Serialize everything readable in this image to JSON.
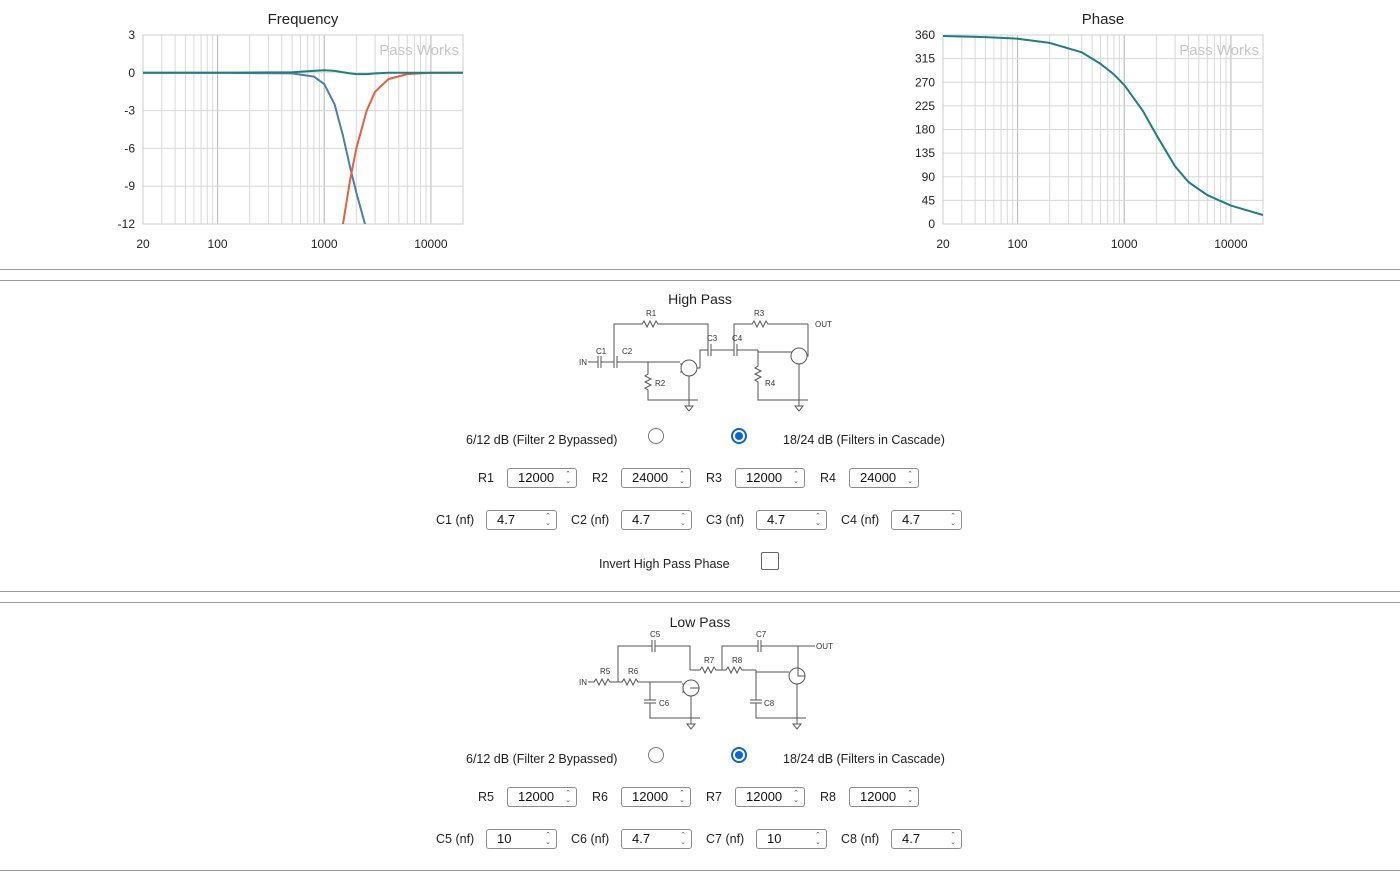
{
  "charts": [
    {
      "title": "Frequency",
      "watermark": "Pass Works",
      "xlabels": [
        "20",
        "100",
        "1000",
        "10000"
      ],
      "ylabels": [
        "3",
        "0",
        "-3",
        "-6",
        "-9",
        "-12"
      ],
      "yticks": [
        3,
        0,
        -3,
        -6,
        -9,
        -12
      ]
    },
    {
      "title": "Phase",
      "watermark": "Pass Works",
      "xlabels": [
        "20",
        "100",
        "1000",
        "10000"
      ],
      "ylabels": [
        "360",
        "315",
        "270",
        "225",
        "180",
        "135",
        "90",
        "45",
        "0"
      ],
      "yticks": [
        360,
        315,
        270,
        225,
        180,
        135,
        90,
        45,
        0
      ]
    }
  ],
  "chart_data": [
    {
      "type": "line",
      "title": "Frequency",
      "x_scale": "log",
      "xlim": [
        20,
        20000
      ],
      "ylim": [
        -12,
        3
      ],
      "grid": true,
      "x": [
        20,
        100,
        500,
        800,
        1000,
        1250,
        1500,
        1750,
        2000,
        2500,
        3000,
        4000,
        6000,
        10000,
        20000
      ],
      "series": [
        {
          "color": "#4a7fb0",
          "values": [
            0,
            0,
            -0.05,
            -0.3,
            -0.9,
            -2.5,
            -5,
            -7.5,
            -9.5,
            -12.5,
            null,
            null,
            null,
            null,
            null
          ]
        },
        {
          "color": "#e5603f",
          "values": [
            null,
            null,
            null,
            null,
            null,
            null,
            -12,
            -8.5,
            -6,
            -3,
            -1.5,
            -0.5,
            -0.1,
            0,
            0
          ]
        },
        {
          "color": "#1f7f7f",
          "values": [
            0,
            0,
            0.05,
            0.15,
            0.2,
            0.15,
            0.05,
            -0.05,
            -0.1,
            -0.1,
            -0.05,
            0,
            0,
            0,
            0
          ]
        }
      ]
    },
    {
      "type": "line",
      "title": "Phase",
      "x_scale": "log",
      "xlim": [
        20,
        20000
      ],
      "ylim": [
        0,
        360
      ],
      "grid": true,
      "x": [
        20,
        50,
        100,
        200,
        400,
        600,
        800,
        1000,
        1500,
        2000,
        3000,
        4000,
        6000,
        10000,
        20000
      ],
      "series": [
        {
          "color": "#1f7f7f",
          "values": [
            358,
            356,
            353,
            345,
            327,
            305,
            285,
            265,
            215,
            170,
            110,
            80,
            55,
            35,
            17
          ]
        }
      ]
    }
  ],
  "high_pass": {
    "title": "High Pass",
    "schematic_labels": {
      "r1": "R1",
      "r2": "R2",
      "r3": "R3",
      "r4": "R4",
      "c1": "C1",
      "c2": "C2",
      "c3": "C3",
      "c4": "C4",
      "in": "IN",
      "out": "OUT"
    },
    "mode_a_label": "6/12 dB (Filter 2 Bypassed)",
    "mode_b_label": "18/24 dB (Filters in Cascade)",
    "selected_mode": "b",
    "resistors": [
      {
        "label": "R1",
        "value": "12000"
      },
      {
        "label": "R2",
        "value": "24000"
      },
      {
        "label": "R3",
        "value": "12000"
      },
      {
        "label": "R4",
        "value": "24000"
      }
    ],
    "caps": [
      {
        "label": "C1 (nf)",
        "value": "4.7"
      },
      {
        "label": "C2 (nf)",
        "value": "4.7"
      },
      {
        "label": "C3 (nf)",
        "value": "4.7"
      },
      {
        "label": "C4 (nf)",
        "value": "4.7"
      }
    ],
    "invert_label": "Invert High Pass Phase",
    "invert_checked": false
  },
  "low_pass": {
    "title": "Low Pass",
    "schematic_labels": {
      "r5": "R5",
      "r6": "R6",
      "r7": "R7",
      "r8": "R8",
      "c5": "C5",
      "c6": "C6",
      "c7": "C7",
      "c8": "C8",
      "in": "IN",
      "out": "OUT"
    },
    "mode_a_label": "6/12 dB (Filter 2 Bypassed)",
    "mode_b_label": "18/24 dB (Filters in Cascade)",
    "selected_mode": "b",
    "resistors": [
      {
        "label": "R5",
        "value": "12000"
      },
      {
        "label": "R6",
        "value": "12000"
      },
      {
        "label": "R7",
        "value": "12000"
      },
      {
        "label": "R8",
        "value": "12000"
      }
    ],
    "caps": [
      {
        "label": "C5 (nf)",
        "value": "10"
      },
      {
        "label": "C6 (nf)",
        "value": "4.7"
      },
      {
        "label": "C7 (nf)",
        "value": "10"
      },
      {
        "label": "C8 (nf)",
        "value": "4.7"
      }
    ]
  }
}
